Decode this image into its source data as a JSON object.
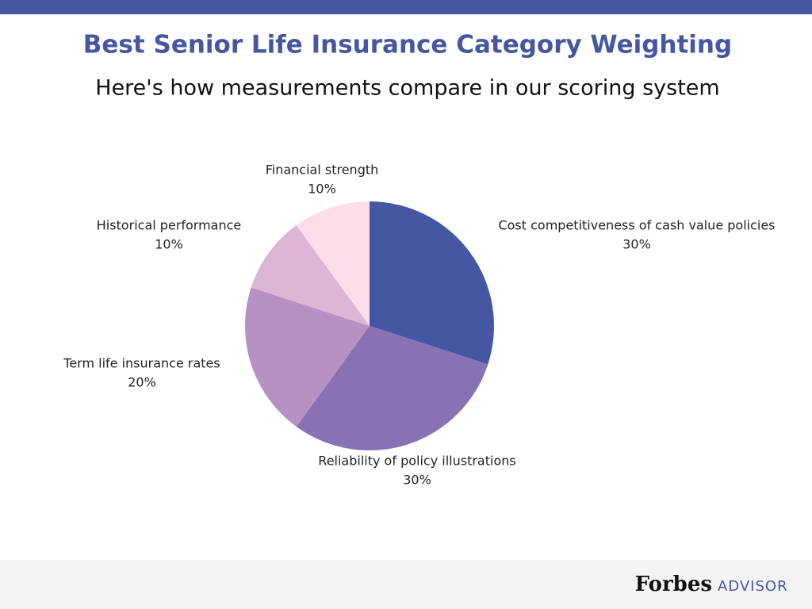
{
  "chart_data": {
    "type": "pie",
    "title": "Best Senior Life Insurance Category Weighting",
    "subtitle": "Here's how measurements compare in our scoring system",
    "categories": [
      "Cost competitiveness of cash value policies",
      "Reliability of policy illustrations",
      "Term life insurance rates",
      "Historical performance",
      "Financial strength"
    ],
    "values": [
      30,
      30,
      20,
      10,
      10
    ],
    "value_labels": [
      "30%",
      "30%",
      "20%",
      "10%",
      "10%"
    ],
    "colors": [
      "#4557a3",
      "#8872b4",
      "#b891c4",
      "#deb6d5",
      "#fddde9"
    ]
  },
  "footer": {
    "brand": "Forbes",
    "product": "ADVISOR"
  }
}
